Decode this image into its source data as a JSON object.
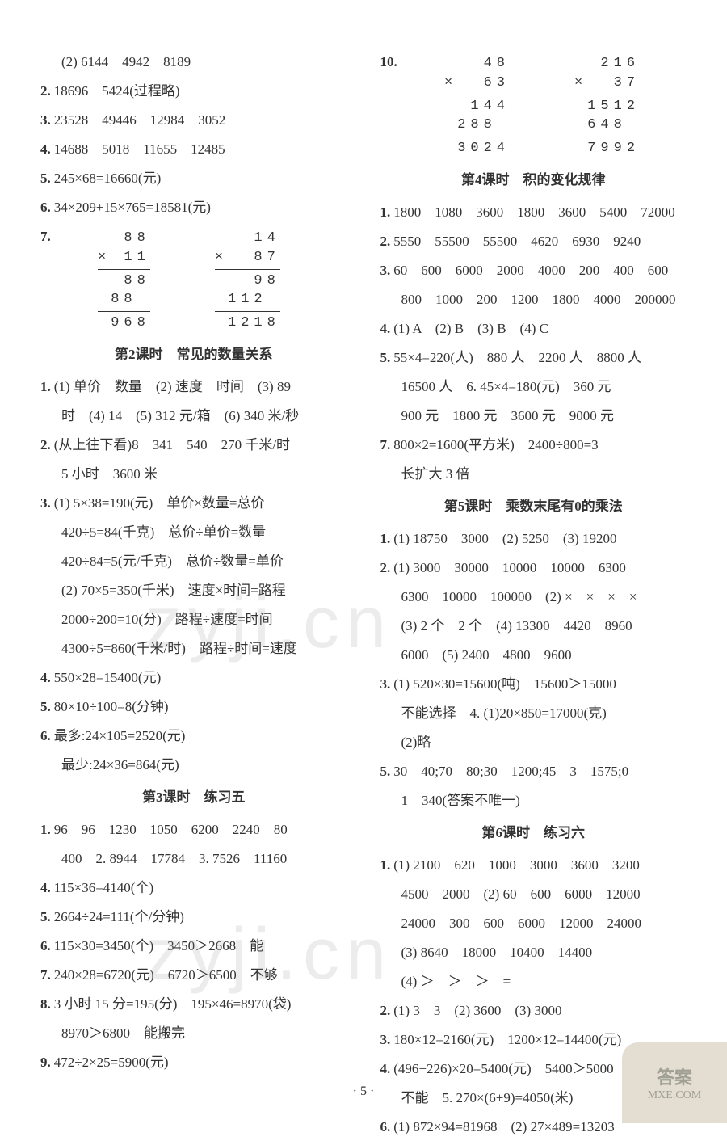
{
  "left": {
    "top_items": [
      "(2) 6144　4942　8189",
      "18696　5424(过程略)",
      "23528　49446　12984　3052",
      "14688　5018　11655　12485",
      "245×68=16660(元)",
      "34×209+15×765=18581(元)"
    ],
    "calc7_a": {
      "op": "×",
      "r1": "88",
      "r2": "11",
      "p1": "88",
      "p2": "88 ",
      "res": "968"
    },
    "calc7_b": {
      "op": "×",
      "r1": "14",
      "r2": "87",
      "p1": "98",
      "p2": "112 ",
      "res": "1218"
    },
    "sec2_title": "第2课时　常见的数量关系",
    "sec2_items": [
      "(1) 单价　数量　(2) 速度　时间　(3) 89",
      "时　(4) 14　(5) 312 元/箱　(6) 340 米/秒",
      "(从上往下看)8　341　540　270 千米/时",
      "5 小时　3600 米",
      "(1) 5×38=190(元)　单价×数量=总价",
      "420÷5=84(千克)　总价÷单价=数量",
      "420÷84=5(元/千克)　总价÷数量=单价",
      "(2) 70×5=350(千米)　速度×时间=路程",
      "2000÷200=10(分)　路程÷速度=时间",
      "4300÷5=860(千米/时)　路程÷时间=速度",
      "550×28=15400(元)",
      "80×10÷100=8(分钟)",
      "最多:24×105=2520(元)",
      "最少:24×36=864(元)"
    ],
    "sec2_nums": [
      "1.",
      "",
      "2.",
      "",
      "3.",
      "",
      "",
      "",
      "",
      "",
      "4.",
      "5.",
      "6.",
      ""
    ],
    "sec3_title": "第3课时　练习五",
    "sec3_items": [
      "96　96　1230　1050　6200　2240　80",
      "400　2. 8944　17784　3. 7526　11160",
      "115×36=4140(个)",
      "2664÷24=111(个/分钟)",
      "115×30=3450(个)　3450＞2668　能",
      "240×28=6720(元)　6720＞6500　不够",
      "3 小时 15 分=195(分)　195×46=8970(袋)",
      "8970＞6800　能搬完",
      "472÷2×25=5900(元)"
    ],
    "sec3_nums": [
      "1.",
      "",
      "4.",
      "5.",
      "6.",
      "7.",
      "8.",
      "",
      "9."
    ]
  },
  "right": {
    "calc10_a": {
      "op": "×",
      "r1": "48",
      "r2": "63",
      "p1": "144",
      "p2": "288 ",
      "res": "3024"
    },
    "calc10_b": {
      "op": "×",
      "r1": "216",
      "r2": "37",
      "p1": "1512",
      "p2": "648 ",
      "res": "7992"
    },
    "sec4_title": "第4课时　积的变化规律",
    "sec4_items": [
      "1800　1080　3600　1800　3600　5400　72000",
      "5550　55500　55500　4620　6930　9240",
      "60　600　6000　2000　4000　200　400　600",
      "800　1000　200　1200　1800　4000　200000",
      "(1) A　(2) B　(3) B　(4) C",
      "55×4=220(人)　880 人　2200 人　8800 人",
      "16500 人　6. 45×4=180(元)　360 元",
      "900 元　1800 元　3600 元　9000 元",
      "800×2=1600(平方米)　2400÷800=3",
      "长扩大 3 倍"
    ],
    "sec4_nums": [
      "1.",
      "2.",
      "3.",
      "",
      "4.",
      "5.",
      "",
      "",
      "7.",
      ""
    ],
    "sec5_title": "第5课时　乘数末尾有0的乘法",
    "sec5_items": [
      "(1) 18750　3000　(2) 5250　(3) 19200",
      "(1) 3000　30000　10000　10000　6300",
      "6300　10000　100000　(2) ×　×　×　×",
      "(3) 2 个　2 个　(4) 13300　4420　8960",
      "6000　(5) 2400　4800　9600",
      "(1) 520×30=15600(吨)　15600＞15000",
      "不能选择　4. (1)20×850=17000(克)",
      "(2)略",
      "30　40;70　80;30　1200;45　3　1575;0",
      "1　340(答案不唯一)"
    ],
    "sec5_nums": [
      "1.",
      "2.",
      "",
      "",
      "",
      "3.",
      "",
      "",
      "5.",
      ""
    ],
    "sec6_title": "第6课时　练习六",
    "sec6_items": [
      "(1) 2100　620　1000　3000　3600　3200",
      "4500　2000　(2) 60　600　6000　12000",
      "24000　300　600　6000　12000　24000",
      "(3) 8640　18000　10400　14400",
      "(4) ＞　＞　＞　=",
      "(1) 3　3　(2) 3600　(3) 3000",
      "180×12=2160(元)　1200×12=14400(元)",
      "(496−226)×20=5400(元)　5400＞5000",
      "不能　5. 270×(6+9)=4050(米)",
      "(1) 872×94=81968　(2) 27×489=13203"
    ],
    "sec6_nums": [
      "1.",
      "",
      "",
      "",
      "",
      "2.",
      "3.",
      "4.",
      "",
      "6."
    ]
  },
  "page_number": "· 5 ·",
  "watermark": "zyji.cn",
  "badge": {
    "top": "答案",
    "bottom": "MXE.COM"
  }
}
